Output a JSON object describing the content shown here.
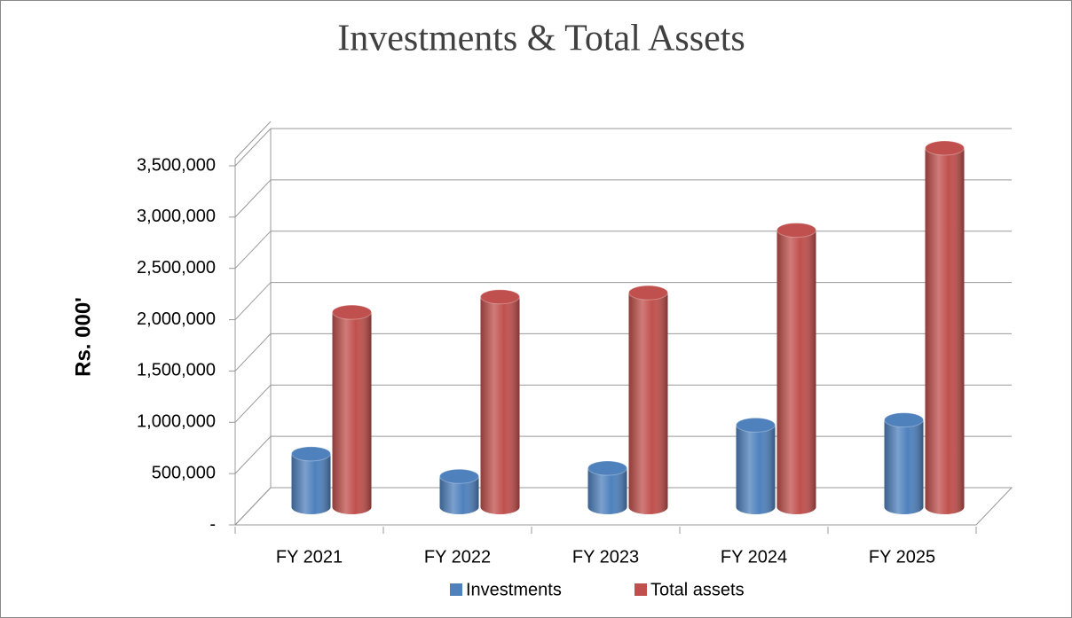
{
  "chart_data": {
    "type": "bar3d",
    "title": "Investments & Total Assets",
    "y_label": "Rs. 000'",
    "categories": [
      "FY 2021",
      "FY 2022",
      "FY 2023",
      "FY 2024",
      "FY 2025"
    ],
    "series": [
      {
        "name": "Investments",
        "color": "#4f81bd",
        "values": [
          520000,
          300000,
          380000,
          800000,
          850000
        ]
      },
      {
        "name": "Total assets",
        "color": "#c0504d",
        "values": [
          1900000,
          2050000,
          2090000,
          2700000,
          3500000
        ]
      }
    ],
    "ylim": [
      0,
      3500000
    ],
    "yticks": [
      {
        "value": 0,
        "label": "-"
      },
      {
        "value": 500000,
        "label": "500,000"
      },
      {
        "value": 1000000,
        "label": "1,000,000"
      },
      {
        "value": 1500000,
        "label": "1,500,000"
      },
      {
        "value": 2000000,
        "label": "2,000,000"
      },
      {
        "value": 2500000,
        "label": "2,500,000"
      },
      {
        "value": 3000000,
        "label": "3,000,000"
      },
      {
        "value": 3500000,
        "label": "3,500,000"
      }
    ],
    "grid": true,
    "legend": "bottom"
  }
}
